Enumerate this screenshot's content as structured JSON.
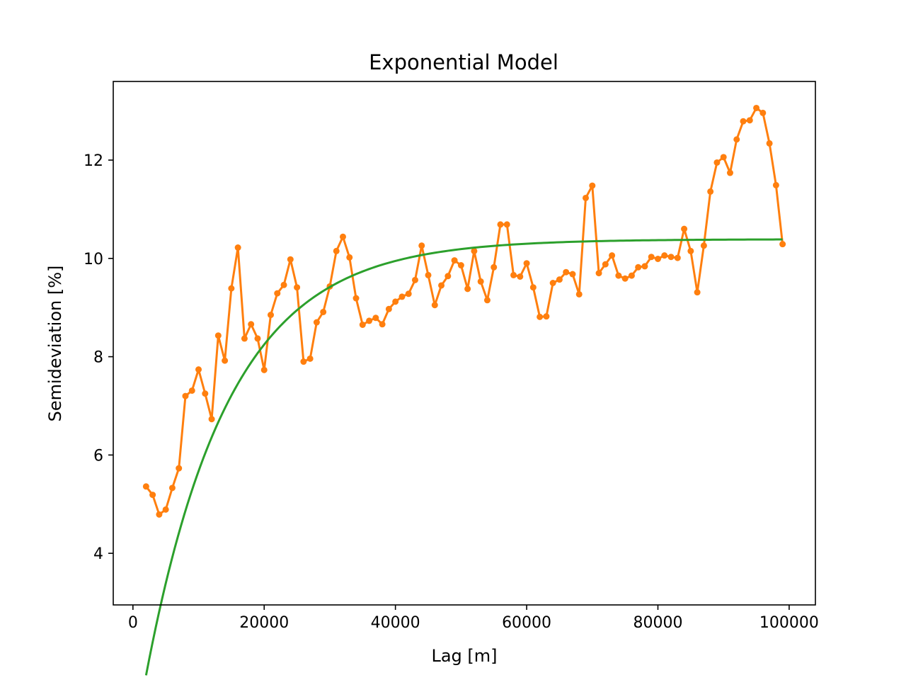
{
  "chart_data": {
    "type": "line",
    "title": "Exponential Model",
    "xlabel": "Lag [m]",
    "ylabel": "Semideviation [%]",
    "xlim": [
      -3000,
      104000
    ],
    "ylim": [
      2.95,
      13.6
    ],
    "xticks": [
      0,
      20000,
      40000,
      60000,
      80000,
      100000
    ],
    "xtick_labels": [
      "0",
      "20000",
      "40000",
      "60000",
      "80000",
      "100000"
    ],
    "yticks": [
      4,
      6,
      8,
      10,
      12
    ],
    "ytick_labels": [
      "4",
      "6",
      "8",
      "10",
      "12"
    ],
    "grid": false,
    "legend": null,
    "series": [
      {
        "kind": "line-markers",
        "color": "#ff7f0e",
        "x": [
          2000,
          3000,
          4000,
          5000,
          6000,
          7000,
          8000,
          9000,
          10000,
          11000,
          12000,
          13000,
          14000,
          15000,
          16000,
          17000,
          18000,
          19000,
          20000,
          21000,
          22000,
          23000,
          24000,
          25000,
          26000,
          27000,
          28000,
          29000,
          30000,
          31000,
          32000,
          33000,
          34000,
          35000,
          36000,
          37000,
          38000,
          39000,
          40000,
          41000,
          42000,
          43000,
          44000,
          45000,
          46000,
          47000,
          48000,
          49000,
          50000,
          51000,
          52000,
          53000,
          54000,
          55000,
          56000,
          57000,
          58000,
          59000,
          60000,
          61000,
          62000,
          63000,
          64000,
          65000,
          66000,
          67000,
          68000,
          69000,
          70000,
          71000,
          72000,
          73000,
          74000,
          75000,
          76000,
          77000,
          78000,
          79000,
          80000,
          81000,
          82000,
          83000,
          84000,
          85000,
          86000,
          87000,
          88000,
          89000,
          90000,
          91000,
          92000,
          93000,
          94000,
          95000,
          96000,
          97000,
          98000,
          99000
        ],
        "y": [
          5.36,
          5.19,
          4.79,
          4.89,
          5.33,
          5.73,
          7.2,
          7.31,
          7.74,
          7.25,
          6.73,
          8.43,
          7.92,
          9.39,
          10.22,
          8.37,
          8.66,
          8.37,
          7.73,
          8.85,
          9.29,
          9.46,
          9.98,
          9.41,
          7.9,
          7.96,
          8.7,
          8.91,
          9.43,
          10.15,
          10.44,
          10.02,
          9.19,
          8.65,
          8.73,
          8.79,
          8.66,
          8.97,
          9.12,
          9.22,
          9.28,
          9.56,
          10.26,
          9.66,
          9.05,
          9.45,
          9.64,
          9.96,
          9.86,
          9.38,
          10.15,
          9.53,
          9.15,
          9.82,
          10.69,
          10.69,
          9.66,
          9.63,
          9.9,
          9.41,
          8.81,
          8.82,
          9.5,
          9.57,
          9.72,
          9.68,
          9.27,
          11.23,
          11.48,
          9.7,
          9.88,
          10.06,
          9.65,
          9.59,
          9.65,
          9.82,
          9.84,
          10.03,
          9.99,
          10.06,
          10.03,
          10.01,
          10.6,
          10.15,
          9.31,
          10.26,
          11.36,
          11.95,
          12.06,
          11.74,
          12.42,
          12.79,
          12.81,
          13.06,
          12.96,
          12.34,
          11.49,
          10.29
        ]
      },
      {
        "kind": "model-curve",
        "color": "#2ca02c",
        "model": "exponential",
        "nugget": 0.0,
        "sill": 10.39,
        "effective_range": 38000,
        "x_range": [
          2000,
          99000
        ]
      }
    ]
  }
}
